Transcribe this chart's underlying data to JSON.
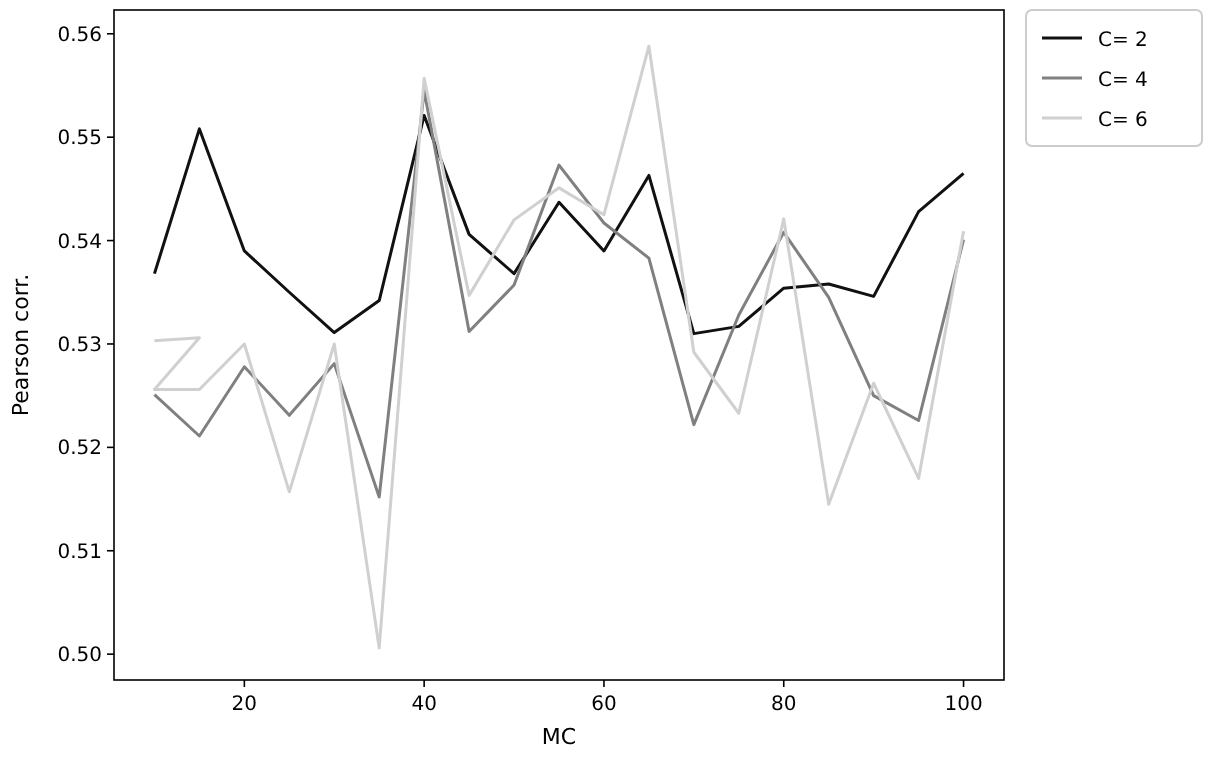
{
  "chart_data": {
    "type": "line",
    "xlabel": "MC",
    "ylabel": "Pearson corr.",
    "x": [
      10,
      15,
      20,
      25,
      30,
      35,
      40,
      45,
      50,
      55,
      60,
      65,
      70,
      75,
      80,
      85,
      90,
      95,
      100
    ],
    "xlim": [
      5.5,
      104.5
    ],
    "ylim": [
      0.4975,
      0.5623
    ],
    "xticks": [
      20,
      40,
      60,
      80,
      100
    ],
    "yticks": [
      {
        "value": 0.5,
        "label": "0.50"
      },
      {
        "value": 0.51,
        "label": "0.51"
      },
      {
        "value": 0.52,
        "label": "0.52"
      },
      {
        "value": 0.53,
        "label": "0.53"
      },
      {
        "value": 0.54,
        "label": "0.54"
      },
      {
        "value": 0.55,
        "label": "0.55"
      },
      {
        "value": 0.56,
        "label": "0.56"
      }
    ],
    "legend": "top right",
    "grid": false,
    "series": [
      {
        "name": "C= 2",
        "color": "#111111",
        "values": [
          0.5368,
          0.5508,
          0.539,
          0.535,
          0.5311,
          0.5342,
          0.5521,
          0.5406,
          0.5368,
          0.5437,
          0.539,
          0.5463,
          0.531,
          0.5317,
          0.5354,
          0.5358,
          0.5346,
          0.5428,
          0.5465
        ]
      },
      {
        "name": "C= 4",
        "color": "#808080",
        "values": [
          0.5251,
          0.5211,
          0.5278,
          0.5231,
          0.5281,
          0.5152,
          0.5545,
          0.5312,
          0.5357,
          0.5473,
          0.5417,
          0.5383,
          0.5222,
          0.5328,
          0.5408,
          0.5345,
          0.525,
          0.5226,
          0.5401
        ]
      },
      {
        "name": "C= 6",
        "color": "#d0d0d0",
        "x": [
          10,
          15,
          10,
          15,
          20,
          25,
          30,
          35,
          40,
          45,
          50,
          55,
          60,
          65,
          70,
          75,
          80,
          85,
          90,
          95,
          100
        ],
        "values": [
          0.5303,
          0.5306,
          0.5256,
          0.5256,
          0.53,
          0.5157,
          0.53,
          0.5006,
          0.5557,
          0.5347,
          0.542,
          0.5451,
          0.5425,
          0.5588,
          0.5292,
          0.5233,
          0.5421,
          0.5145,
          0.5262,
          0.517,
          0.5409
        ]
      }
    ]
  }
}
